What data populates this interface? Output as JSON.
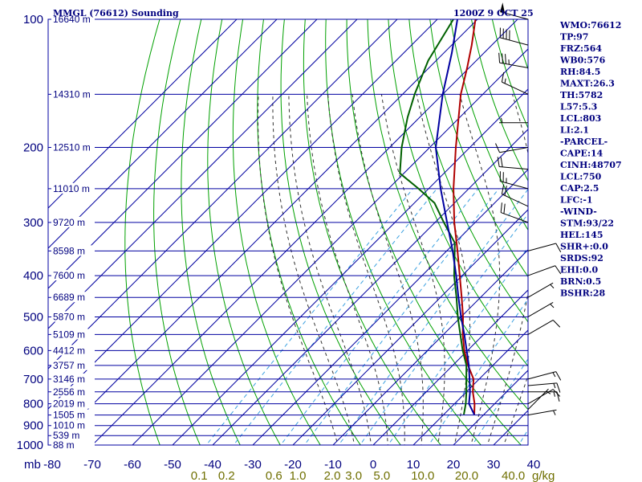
{
  "header": {
    "station": "MMGL (76612) Sounding",
    "time": "1200Z  9 OCT 25"
  },
  "colors": {
    "frame": "#0000a0",
    "isotherm": "#0000a0",
    "isobar": "#0000a0",
    "dry_adiabat": "#00a000",
    "moist_adiabat": "#303030",
    "mixing_ratio": "#3aa0e0",
    "temperature": "#b00000",
    "dewpoint": "#006000",
    "parcel": "#0000a0",
    "wind": "#000000"
  },
  "chart_data": {
    "type": "line",
    "title": "MMGL (76612) Sounding",
    "x_axis": {
      "unit_label": "mb",
      "ticks": [
        -80,
        -70,
        -60,
        -50,
        -40,
        -30,
        -20,
        -10,
        0,
        10,
        20,
        30,
        40
      ],
      "tick_labels": [
        "-80",
        "-70",
        "-60",
        "-50",
        "-40",
        "-30",
        "-20",
        "-10",
        "0",
        "10",
        "20",
        "30",
        "40"
      ]
    },
    "y_axis": {
      "log_scale": true,
      "ticks": [
        100,
        200,
        300,
        400,
        500,
        600,
        700,
        800,
        900,
        1000
      ],
      "tick_labels": [
        "100",
        "200",
        "300",
        "400",
        "500",
        "600",
        "700",
        "800",
        "900",
        "1000"
      ]
    },
    "heights": [
      {
        "p": 100,
        "label": "16640 m"
      },
      {
        "p": 150,
        "label": "14310 m"
      },
      {
        "p": 200,
        "label": "12510 m"
      },
      {
        "p": 250,
        "label": "11010 m"
      },
      {
        "p": 300,
        "label": "9720 m"
      },
      {
        "p": 350,
        "label": "8598 m"
      },
      {
        "p": 400,
        "label": "7600 m"
      },
      {
        "p": 450,
        "label": "6689 m"
      },
      {
        "p": 500,
        "label": "5870 m"
      },
      {
        "p": 550,
        "label": "5109 m"
      },
      {
        "p": 600,
        "label": "4412 m"
      },
      {
        "p": 650,
        "label": "3757 m"
      },
      {
        "p": 700,
        "label": "3146 m"
      },
      {
        "p": 750,
        "label": "2556 m"
      },
      {
        "p": 800,
        "label": "2019 m"
      },
      {
        "p": 850,
        "label": "1505 m"
      },
      {
        "p": 900,
        "label": "1010 m"
      },
      {
        "p": 950,
        "label": "539 m"
      },
      {
        "p": 1000,
        "label": "88 m"
      }
    ],
    "mixing_ratio_labels": [
      {
        "w": 0.1,
        "label": "0.1"
      },
      {
        "w": 0.2,
        "label": "0.2"
      },
      {
        "w": 0.6,
        "label": "0.6"
      },
      {
        "w": 1.0,
        "label": "1.0"
      },
      {
        "w": 2.0,
        "label": "2.0"
      },
      {
        "w": 3.0,
        "label": "3.0"
      },
      {
        "w": 5.0,
        "label": "5.0"
      },
      {
        "w": 10.0,
        "label": "10.0"
      },
      {
        "w": 20.0,
        "label": "20.0"
      },
      {
        "w": 40.0,
        "label": "40.0"
      }
    ],
    "mixing_ratio_unit": "g/kg",
    "isotherm_range": [
      -140,
      40
    ],
    "dry_adiabats_theta": [
      220,
      230,
      240,
      250,
      260,
      270,
      280,
      290,
      300,
      310,
      320,
      330,
      340,
      350,
      360,
      370,
      380,
      390,
      400,
      410,
      420,
      430,
      440,
      450,
      460,
      470,
      480,
      490,
      500,
      510,
      520
    ],
    "moist_adiabats_start_T": [
      -6,
      -2,
      2,
      6,
      10,
      14,
      18,
      22,
      26,
      30,
      34
    ],
    "series": [
      {
        "name": "temperature",
        "points": [
          [
            848,
            17.6
          ],
          [
            800,
            15.0
          ],
          [
            750,
            11.6
          ],
          [
            700,
            8.6
          ],
          [
            650,
            3.8
          ],
          [
            600,
            -0.8
          ],
          [
            550,
            -5.2
          ],
          [
            500,
            -9.5
          ],
          [
            450,
            -14.7
          ],
          [
            400,
            -20.6
          ],
          [
            350,
            -27.3
          ],
          [
            300,
            -35.2
          ],
          [
            250,
            -43.8
          ],
          [
            200,
            -53.5
          ],
          [
            150,
            -65.5
          ],
          [
            130,
            -70.5
          ],
          [
            115,
            -75.0
          ],
          [
            100,
            -80.5
          ]
        ]
      },
      {
        "name": "dewpoint",
        "points": [
          [
            848,
            15.0
          ],
          [
            800,
            12.8
          ],
          [
            750,
            10.0
          ],
          [
            700,
            6.8
          ],
          [
            650,
            3.4
          ],
          [
            600,
            -1.2
          ],
          [
            550,
            -5.8
          ],
          [
            500,
            -10.8
          ],
          [
            450,
            -16.0
          ],
          [
            400,
            -22.0
          ],
          [
            350,
            -28.0
          ],
          [
            335,
            -30.0
          ],
          [
            300,
            -37.8
          ],
          [
            270,
            -45.0
          ],
          [
            250,
            -52.5
          ],
          [
            230,
            -61.0
          ],
          [
            200,
            -67.0
          ],
          [
            170,
            -73.0
          ],
          [
            150,
            -77.0
          ],
          [
            125,
            -82.0
          ],
          [
            100,
            -86.0
          ]
        ]
      },
      {
        "name": "parcel",
        "points": [
          [
            848,
            17.6
          ],
          [
            800,
            13.6
          ],
          [
            750,
            10.9
          ],
          [
            700,
            7.6
          ],
          [
            650,
            4.0
          ],
          [
            600,
            -0.2
          ],
          [
            550,
            -4.8
          ],
          [
            500,
            -10.0
          ],
          [
            450,
            -15.5
          ],
          [
            400,
            -21.5
          ],
          [
            350,
            -28.5
          ],
          [
            300,
            -37.0
          ],
          [
            250,
            -47.0
          ],
          [
            200,
            -58.5
          ],
          [
            150,
            -70.0
          ],
          [
            120,
            -78.0
          ],
          [
            100,
            -85.0
          ]
        ]
      }
    ],
    "winds": [
      {
        "p": 100,
        "dir": 285,
        "spd": 50
      },
      {
        "p": 115,
        "dir": 285,
        "spd": 40
      },
      {
        "p": 130,
        "dir": 280,
        "spd": 35
      },
      {
        "p": 150,
        "dir": 295,
        "spd": 15
      },
      {
        "p": 175,
        "dir": 270,
        "spd": 5
      },
      {
        "p": 200,
        "dir": 260,
        "spd": 10
      },
      {
        "p": 225,
        "dir": 275,
        "spd": 20
      },
      {
        "p": 250,
        "dir": 285,
        "spd": 25
      },
      {
        "p": 275,
        "dir": 295,
        "spd": 20
      },
      {
        "p": 300,
        "dir": 290,
        "spd": 20
      },
      {
        "p": 350,
        "dir": 75,
        "spd": 10
      },
      {
        "p": 400,
        "dir": 70,
        "spd": 10
      },
      {
        "p": 450,
        "dir": 60,
        "spd": 5
      },
      {
        "p": 500,
        "dir": 60,
        "spd": 5
      },
      {
        "p": 550,
        "dir": 60,
        "spd": 10
      },
      {
        "p": 700,
        "dir": 75,
        "spd": 15
      },
      {
        "p": 725,
        "dir": 85,
        "spd": 15
      },
      {
        "p": 750,
        "dir": 90,
        "spd": 15
      },
      {
        "p": 800,
        "dir": 60,
        "spd": 10
      },
      {
        "p": 825,
        "dir": 45,
        "spd": 5
      },
      {
        "p": 850,
        "dir": 80,
        "spd": 5
      }
    ]
  },
  "indices": [
    "WMO:76612",
    "TP:97",
    "FRZ:564",
    "WB0:576",
    "RH:84.5",
    "MAXT:26.3",
    "TH:5782",
    "L57:5.3",
    "LCL:803",
    "LI:2.1",
    "-PARCEL-",
    "CAPE:14",
    "CINH:48707",
    "LCL:750",
    "CAP:2.5",
    "LFC:-1",
    "-WIND-",
    "STM:93/22",
    "HEL:145",
    "SHR+:0.0",
    "SRDS:92",
    "EHI:0.0",
    "BRN:0.5",
    "BSHR:28"
  ]
}
